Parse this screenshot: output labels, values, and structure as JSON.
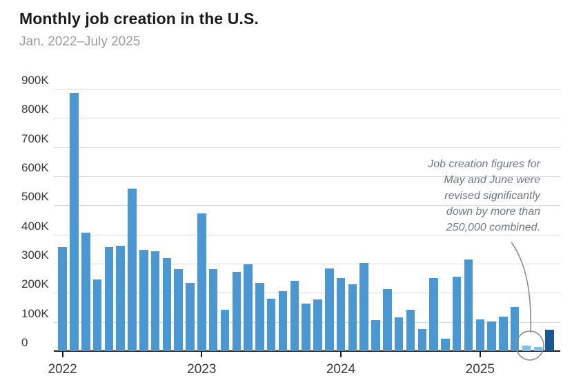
{
  "header": {
    "title": "Monthly job creation in the U.S.",
    "subtitle": "Jan. 2022–July 2025"
  },
  "chart_data": {
    "type": "bar",
    "title": "Monthly job creation in the U.S.",
    "subtitle": "Jan. 2022–July 2025",
    "unit": "jobs added per month, thousands",
    "x": [
      "Jan 2022",
      "Feb 2022",
      "Mar 2022",
      "Apr 2022",
      "May 2022",
      "Jun 2022",
      "Jul 2022",
      "Aug 2022",
      "Sep 2022",
      "Oct 2022",
      "Nov 2022",
      "Dec 2022",
      "Jan 2023",
      "Feb 2023",
      "Mar 2023",
      "Apr 2023",
      "May 2023",
      "Jun 2023",
      "Jul 2023",
      "Aug 2023",
      "Sep 2023",
      "Oct 2023",
      "Nov 2023",
      "Dec 2023",
      "Jan 2024",
      "Feb 2024",
      "Mar 2024",
      "Apr 2024",
      "May 2024",
      "Jun 2024",
      "Jul 2024",
      "Aug 2024",
      "Sep 2024",
      "Oct 2024",
      "Nov 2024",
      "Dec 2024",
      "Jan 2025",
      "Feb 2025",
      "Mar 2025",
      "Apr 2025",
      "May 2025",
      "Jun 2025",
      "Jul 2025"
    ],
    "values_thousands": [
      356,
      887,
      406,
      246,
      356,
      362,
      557,
      347,
      343,
      318,
      282,
      234,
      472,
      282,
      143,
      272,
      297,
      235,
      180,
      205,
      241,
      162,
      178,
      284,
      250,
      230,
      303,
      107,
      213,
      117,
      143,
      76,
      250,
      42,
      256,
      315,
      109,
      101,
      119,
      152,
      19,
      14,
      73
    ],
    "ylim_thousands": [
      0,
      900
    ],
    "ytick_labels": [
      "0",
      "100K",
      "200K",
      "300K",
      "400K",
      "500K",
      "600K",
      "700K",
      "800K",
      "900K"
    ],
    "xtick_labels": [
      "2022",
      "2023",
      "2024",
      "2025"
    ],
    "grid": "horizontal",
    "legend": "none",
    "highlight": {
      "light_indices": [
        40,
        41
      ],
      "dark_index": 42
    },
    "annotation": {
      "lines": [
        "Job creation figures for",
        "May and June were",
        "revised significantly",
        "down by more than",
        "250,000 combined."
      ]
    },
    "colors": {
      "bar": "#4a98d3",
      "bar_highlight_light": "#85bde7",
      "bar_final_dark": "#1a5796",
      "gridline": "#d9d9d9",
      "axis": "#1a1a1a",
      "title_text": "#1b1b1b",
      "subtitle_text": "#9b9b9b",
      "annotation_text": "#73777c",
      "pointer_stroke": "#8c8c8c"
    }
  }
}
